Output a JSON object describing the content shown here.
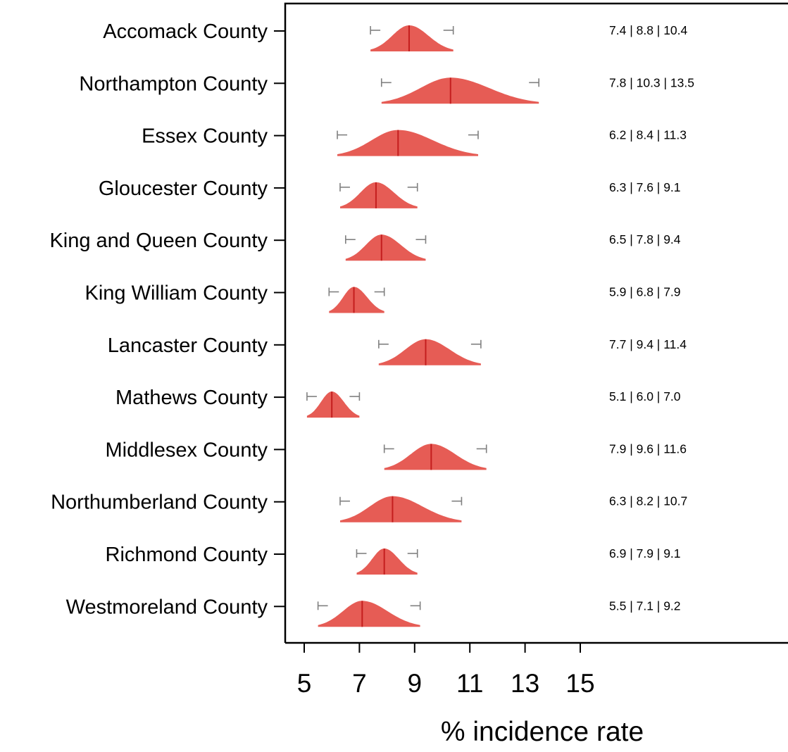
{
  "chart_data": {
    "type": "ridgeline",
    "xlabel": "% incidence rate",
    "xlim": [
      4.1,
      21.8
    ],
    "xticks": [
      5,
      7,
      9,
      11,
      13,
      15
    ],
    "colors": {
      "density": "#e65c55",
      "median": "#c41e1e",
      "whisker": "#808080",
      "axis": "#000000"
    },
    "categories": [
      "Accomack County",
      "Northampton County",
      "Essex County",
      "Gloucester County",
      "King and Queen County",
      "King William County",
      "Lancaster County",
      "Mathews County",
      "Middlesex County",
      "Northumberland County",
      "Richmond County",
      "Westmoreland County"
    ],
    "series": [
      {
        "county": "Accomack County",
        "low": 7.4,
        "median": 8.8,
        "high": 10.4,
        "label": "7.4 | 8.8 | 10.4"
      },
      {
        "county": "Northampton County",
        "low": 7.8,
        "median": 10.3,
        "high": 13.5,
        "label": "7.8 | 10.3 | 13.5"
      },
      {
        "county": "Essex County",
        "low": 6.2,
        "median": 8.4,
        "high": 11.3,
        "label": "6.2 | 8.4 | 11.3"
      },
      {
        "county": "Gloucester County",
        "low": 6.3,
        "median": 7.6,
        "high": 9.1,
        "label": "6.3 | 7.6 | 9.1"
      },
      {
        "county": "King and Queen County",
        "low": 6.5,
        "median": 7.8,
        "high": 9.4,
        "label": "6.5 | 7.8 | 9.4"
      },
      {
        "county": "King William County",
        "low": 5.9,
        "median": 6.8,
        "high": 7.9,
        "label": "5.9 | 6.8 | 7.9"
      },
      {
        "county": "Lancaster County",
        "low": 7.7,
        "median": 9.4,
        "high": 11.4,
        "label": "7.7 | 9.4 | 11.4"
      },
      {
        "county": "Mathews County",
        "low": 5.1,
        "median": 6.0,
        "high": 7.0,
        "label": "5.1 | 6.0 | 7.0"
      },
      {
        "county": "Middlesex County",
        "low": 7.9,
        "median": 9.6,
        "high": 11.6,
        "label": "7.9 | 9.6 | 11.6"
      },
      {
        "county": "Northumberland County",
        "low": 6.3,
        "median": 8.2,
        "high": 10.7,
        "label": "6.3 | 8.2 | 10.7"
      },
      {
        "county": "Richmond County",
        "low": 6.9,
        "median": 7.9,
        "high": 9.1,
        "label": "6.9 | 7.9 | 9.1"
      },
      {
        "county": "Westmoreland County",
        "low": 5.5,
        "median": 7.1,
        "high": 9.2,
        "label": "5.5 | 7.1 | 9.2"
      }
    ]
  }
}
